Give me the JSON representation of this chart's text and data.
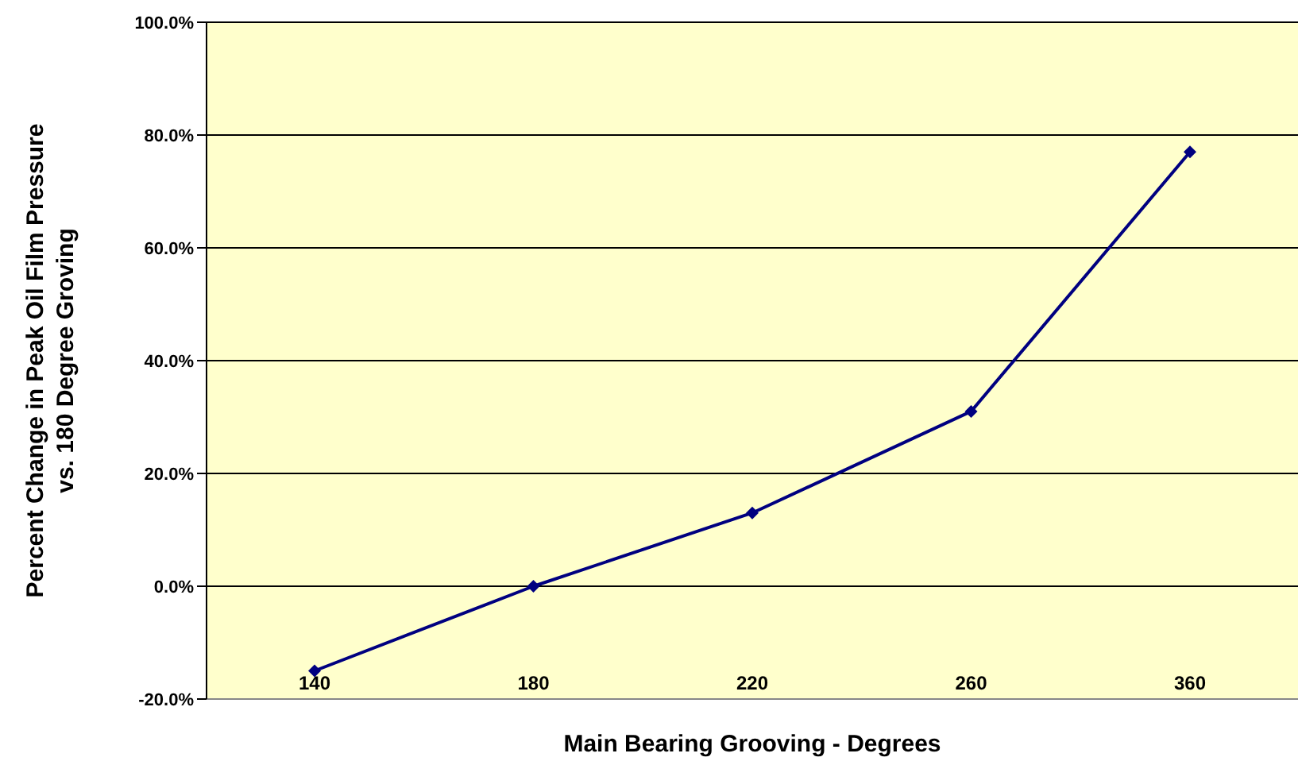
{
  "chart_data": {
    "type": "line",
    "xlabel": "Main Bearing Grooving - Degrees",
    "ylabel": "Percent Change in Peak Oil Film Pressure\nvs. 180 Degree Groving",
    "categories": [
      "140",
      "180",
      "220",
      "260",
      "360"
    ],
    "series": [
      {
        "color": "#000080",
        "values": [
          -15,
          0,
          13,
          31,
          77
        ]
      }
    ],
    "ylim": [
      -20,
      100
    ],
    "yticks": [
      {
        "value": -20,
        "label": "-20.0%"
      },
      {
        "value": 0,
        "label": "0.0%"
      },
      {
        "value": 20,
        "label": "20.0%"
      },
      {
        "value": 40,
        "label": "40.0%"
      },
      {
        "value": 60,
        "label": "60.0%"
      },
      {
        "value": 80,
        "label": "80.0%"
      },
      {
        "value": 100,
        "label": "100.0%"
      }
    ],
    "grid": "y",
    "marker": "diamond",
    "line_style": "solid",
    "legend": false
  }
}
